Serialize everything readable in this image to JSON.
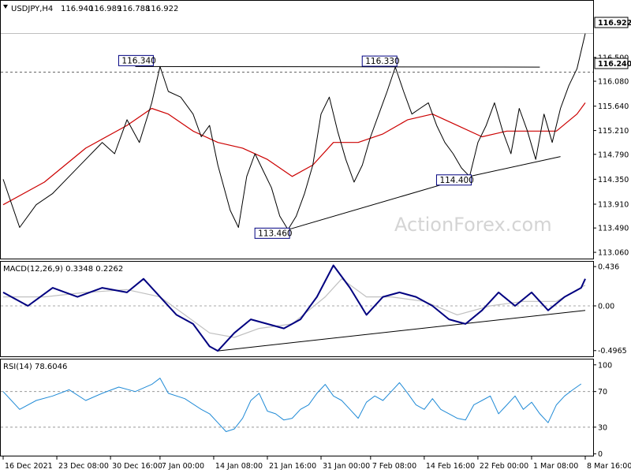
{
  "chart_data": {
    "type": "line",
    "main": {
      "symbol": "USDJPY,H4",
      "open": "116.940",
      "high": "116.989",
      "low": "116.788",
      "close": "116.922",
      "ylim": [
        112.95,
        117.5
      ],
      "yticks": [
        "116.500",
        "116.080",
        "115.640",
        "115.210",
        "114.790",
        "114.350",
        "113.910",
        "113.490",
        "113.060"
      ],
      "price_tag": "116.922",
      "level_tag": "116.240",
      "level_value": 116.24,
      "close_value": 116.922,
      "annotations": [
        "116.340",
        "116.330",
        "114.400",
        "113.460"
      ],
      "watermark": "ActionForex.com",
      "price_path": [
        [
          0,
          114.35
        ],
        [
          4,
          113.5
        ],
        [
          8,
          113.9
        ],
        [
          12,
          114.1
        ],
        [
          16,
          114.4
        ],
        [
          20,
          114.7
        ],
        [
          24,
          115.0
        ],
        [
          27,
          114.8
        ],
        [
          30,
          115.4
        ],
        [
          33,
          115.0
        ],
        [
          36,
          115.7
        ],
        [
          38,
          116.34
        ],
        [
          40,
          115.9
        ],
        [
          43,
          115.8
        ],
        [
          46,
          115.5
        ],
        [
          48,
          115.1
        ],
        [
          50,
          115.3
        ],
        [
          52,
          114.6
        ],
        [
          55,
          113.8
        ],
        [
          57,
          113.5
        ],
        [
          59,
          114.4
        ],
        [
          61,
          114.8
        ],
        [
          63,
          114.5
        ],
        [
          65,
          114.2
        ],
        [
          67,
          113.7
        ],
        [
          69,
          113.46
        ],
        [
          71,
          113.7
        ],
        [
          73,
          114.1
        ],
        [
          75,
          114.6
        ],
        [
          77,
          115.5
        ],
        [
          79,
          115.8
        ],
        [
          81,
          115.2
        ],
        [
          83,
          114.7
        ],
        [
          85,
          114.3
        ],
        [
          87,
          114.6
        ],
        [
          89,
          115.1
        ],
        [
          91,
          115.5
        ],
        [
          93,
          115.9
        ],
        [
          95,
          116.33
        ],
        [
          97,
          115.9
        ],
        [
          99,
          115.5
        ],
        [
          101,
          115.6
        ],
        [
          103,
          115.7
        ],
        [
          105,
          115.3
        ],
        [
          107,
          115.0
        ],
        [
          109,
          114.8
        ],
        [
          111,
          114.55
        ],
        [
          113,
          114.4
        ],
        [
          115,
          115.0
        ],
        [
          117,
          115.3
        ],
        [
          119,
          115.7
        ],
        [
          121,
          115.2
        ],
        [
          123,
          114.8
        ],
        [
          125,
          115.6
        ],
        [
          127,
          115.2
        ],
        [
          129,
          114.7
        ],
        [
          131,
          115.5
        ],
        [
          133,
          115.0
        ],
        [
          135,
          115.6
        ],
        [
          137,
          116.0
        ],
        [
          139,
          116.3
        ],
        [
          141,
          116.922
        ]
      ],
      "ma_path": [
        [
          0,
          113.9
        ],
        [
          10,
          114.3
        ],
        [
          20,
          114.9
        ],
        [
          30,
          115.3
        ],
        [
          36,
          115.6
        ],
        [
          40,
          115.5
        ],
        [
          46,
          115.2
        ],
        [
          52,
          115.0
        ],
        [
          58,
          114.9
        ],
        [
          64,
          114.7
        ],
        [
          70,
          114.4
        ],
        [
          75,
          114.6
        ],
        [
          80,
          115.0
        ],
        [
          86,
          115.0
        ],
        [
          92,
          115.15
        ],
        [
          98,
          115.4
        ],
        [
          104,
          115.5
        ],
        [
          110,
          115.3
        ],
        [
          116,
          115.1
        ],
        [
          122,
          115.2
        ],
        [
          128,
          115.2
        ],
        [
          134,
          115.2
        ],
        [
          139,
          115.5
        ],
        [
          141,
          115.7
        ]
      ],
      "trendline": [
        [
          69,
          113.46
        ],
        [
          113,
          114.4
        ],
        [
          135,
          114.75
        ]
      ],
      "resistance": [
        [
          32,
          116.34
        ],
        [
          130,
          116.33
        ]
      ]
    },
    "macd": {
      "label": "MACD(12,26,9) 0.3348 0.2262",
      "ylim": [
        -0.56,
        0.49
      ],
      "yticks": [
        "0.436",
        "0.00",
        "-0.4965"
      ],
      "main_path": [
        [
          0,
          0.15
        ],
        [
          6,
          0.0
        ],
        [
          12,
          0.2
        ],
        [
          18,
          0.1
        ],
        [
          24,
          0.2
        ],
        [
          30,
          0.15
        ],
        [
          34,
          0.3
        ],
        [
          38,
          0.1
        ],
        [
          42,
          -0.1
        ],
        [
          46,
          -0.2
        ],
        [
          50,
          -0.45
        ],
        [
          52,
          -0.5
        ],
        [
          56,
          -0.3
        ],
        [
          60,
          -0.15
        ],
        [
          64,
          -0.2
        ],
        [
          68,
          -0.25
        ],
        [
          72,
          -0.15
        ],
        [
          76,
          0.1
        ],
        [
          80,
          0.45
        ],
        [
          84,
          0.2
        ],
        [
          88,
          -0.1
        ],
        [
          92,
          0.1
        ],
        [
          96,
          0.15
        ],
        [
          100,
          0.1
        ],
        [
          104,
          0.0
        ],
        [
          108,
          -0.15
        ],
        [
          112,
          -0.2
        ],
        [
          116,
          -0.05
        ],
        [
          120,
          0.15
        ],
        [
          124,
          0.0
        ],
        [
          128,
          0.15
        ],
        [
          132,
          -0.05
        ],
        [
          136,
          0.1
        ],
        [
          140,
          0.2
        ],
        [
          141,
          0.3
        ]
      ],
      "signal_path": [
        [
          0,
          0.1
        ],
        [
          10,
          0.1
        ],
        [
          20,
          0.15
        ],
        [
          30,
          0.18
        ],
        [
          38,
          0.1
        ],
        [
          44,
          -0.1
        ],
        [
          50,
          -0.3
        ],
        [
          56,
          -0.35
        ],
        [
          62,
          -0.25
        ],
        [
          70,
          -0.2
        ],
        [
          78,
          0.1
        ],
        [
          82,
          0.3
        ],
        [
          88,
          0.1
        ],
        [
          94,
          0.1
        ],
        [
          102,
          0.05
        ],
        [
          110,
          -0.1
        ],
        [
          118,
          0.0
        ],
        [
          126,
          0.05
        ],
        [
          134,
          0.05
        ],
        [
          141,
          0.23
        ]
      ],
      "trendline": [
        [
          52,
          -0.5
        ],
        [
          141,
          -0.05
        ]
      ]
    },
    "rsi": {
      "label": "RSI(14) 78.6046",
      "ylim": [
        -2,
        106
      ],
      "yticks": [
        "100",
        "70",
        "30",
        "0"
      ],
      "levels": [
        70,
        30
      ],
      "path": [
        [
          0,
          70
        ],
        [
          4,
          50
        ],
        [
          8,
          60
        ],
        [
          12,
          65
        ],
        [
          16,
          72
        ],
        [
          20,
          60
        ],
        [
          24,
          68
        ],
        [
          28,
          75
        ],
        [
          32,
          70
        ],
        [
          36,
          78
        ],
        [
          38,
          85
        ],
        [
          40,
          68
        ],
        [
          44,
          62
        ],
        [
          48,
          50
        ],
        [
          50,
          45
        ],
        [
          52,
          35
        ],
        [
          54,
          25
        ],
        [
          56,
          28
        ],
        [
          58,
          40
        ],
        [
          60,
          60
        ],
        [
          62,
          68
        ],
        [
          64,
          48
        ],
        [
          66,
          45
        ],
        [
          68,
          38
        ],
        [
          70,
          40
        ],
        [
          72,
          50
        ],
        [
          74,
          55
        ],
        [
          76,
          68
        ],
        [
          78,
          78
        ],
        [
          80,
          65
        ],
        [
          82,
          60
        ],
        [
          84,
          50
        ],
        [
          86,
          40
        ],
        [
          88,
          58
        ],
        [
          90,
          65
        ],
        [
          92,
          60
        ],
        [
          94,
          70
        ],
        [
          96,
          80
        ],
        [
          98,
          68
        ],
        [
          100,
          55
        ],
        [
          102,
          50
        ],
        [
          104,
          62
        ],
        [
          106,
          50
        ],
        [
          108,
          45
        ],
        [
          110,
          40
        ],
        [
          112,
          38
        ],
        [
          114,
          55
        ],
        [
          116,
          60
        ],
        [
          118,
          65
        ],
        [
          120,
          45
        ],
        [
          122,
          55
        ],
        [
          124,
          65
        ],
        [
          126,
          50
        ],
        [
          128,
          58
        ],
        [
          130,
          45
        ],
        [
          132,
          35
        ],
        [
          134,
          55
        ],
        [
          136,
          65
        ],
        [
          138,
          72
        ],
        [
          140,
          78.6
        ]
      ]
    },
    "x_labels": [
      "16 Dec 2021",
      "23 Dec 08:00",
      "30 Dec 16:00",
      "7 Jan 00:00",
      "14 Jan 08:00",
      "21 Jan 16:00",
      "31 Jan 00:00",
      "7 Feb 08:00",
      "14 Feb 16:00",
      "22 Feb 00:00",
      "1 Mar 08:00",
      "8 Mar 16:00"
    ],
    "x_label_positions": [
      0,
      13,
      26,
      38,
      51,
      64,
      77,
      89,
      102,
      115,
      128,
      141
    ],
    "colors": {
      "price": "#000000",
      "ma": "#cc0000",
      "macd_main": "#000080",
      "macd_signal": "#c0c0c0",
      "rsi": "#1f8ad6",
      "level": "#666666"
    }
  }
}
